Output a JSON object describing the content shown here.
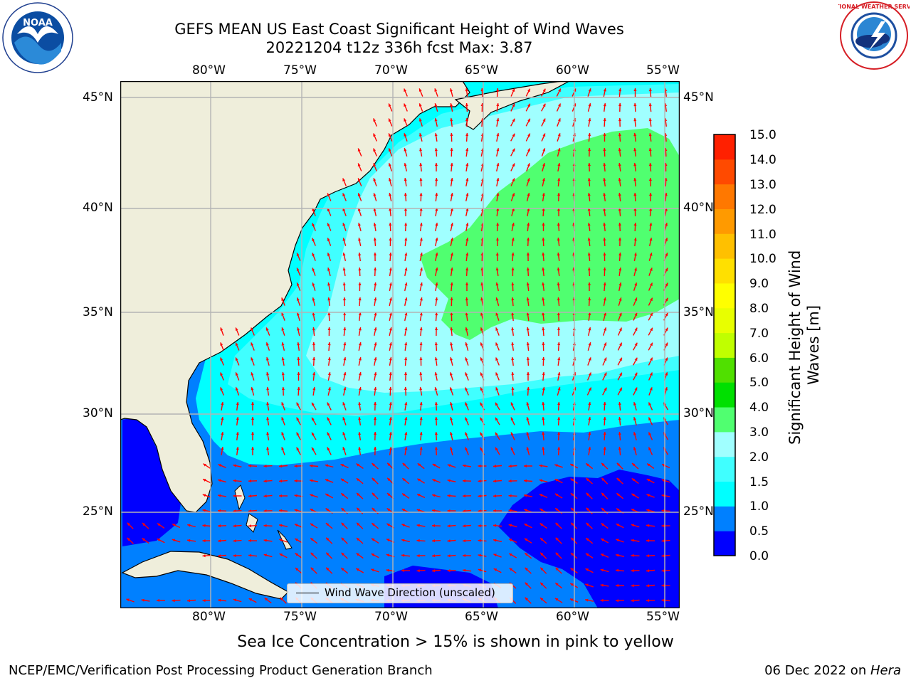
{
  "title": {
    "line1": "GEFS MEAN US East Coast Significant Height of Wind Waves",
    "line2": "20221204 t12z 336h fcst   Max: 3.87"
  },
  "logos": {
    "left": {
      "name": "noaa-logo",
      "text": "NOAA"
    },
    "right": {
      "name": "national-weather-service-logo",
      "text": "NATIONAL WEATHER SERVICE"
    }
  },
  "map": {
    "lon_labels": [
      "80°W",
      "75°W",
      "70°W",
      "65°W",
      "60°W",
      "55°W"
    ],
    "lat_labels": [
      "45°N",
      "40°N",
      "35°N",
      "30°N",
      "25°N"
    ],
    "land_color": "#efeedb",
    "arrow_color": "#ff0000",
    "legend": "Wind Wave Direction (unscaled)"
  },
  "colorbar": {
    "title": "Significant Height of Wind Waves [m]",
    "ticks": [
      "15.0",
      "14.0",
      "13.0",
      "12.0",
      "11.0",
      "10.0",
      "9.0",
      "8.0",
      "7.0",
      "6.0",
      "5.0",
      "4.0",
      "3.0",
      "2.0",
      "1.5",
      "1.0",
      "0.5",
      "0.0"
    ],
    "colors": [
      "#0000ff",
      "#0080ff",
      "#00ffff",
      "#40ffff",
      "#a0ffff",
      "#50ff70",
      "#00e000",
      "#50e000",
      "#c0ff00",
      "#e8ff00",
      "#ffff00",
      "#ffe000",
      "#ffc000",
      "#ff9a00",
      "#ff7800",
      "#ff4a00",
      "#ff2000",
      "#ff0000"
    ]
  },
  "ice_note": "Sea Ice Concentration > 15% is shown in pink to yellow",
  "footer": {
    "left": "NCEP/EMC/Verification Post Processing Product Generation Branch",
    "right_date": "06 Dec 2022 on ",
    "right_host": "Hera"
  }
}
